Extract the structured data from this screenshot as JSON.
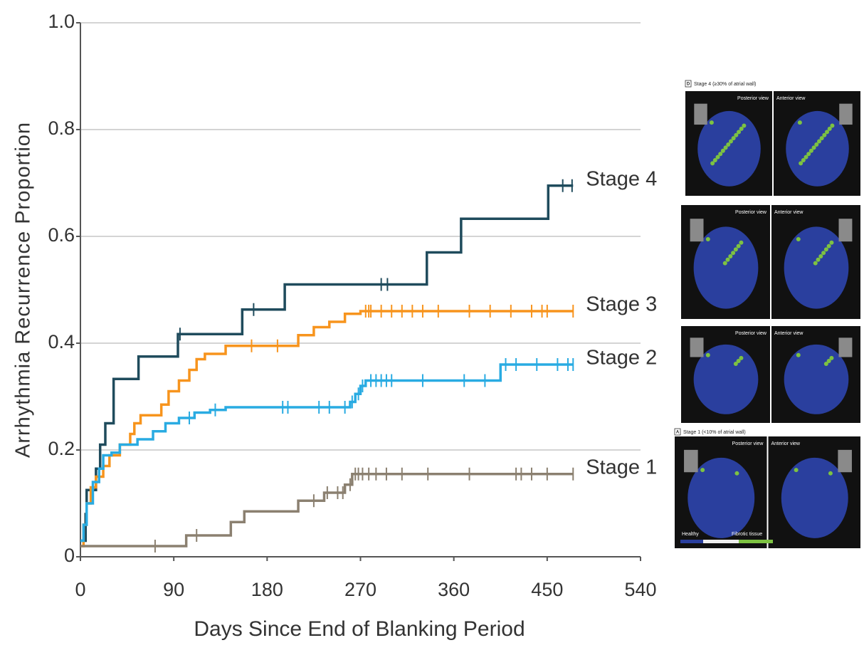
{
  "chart_data": {
    "type": "line",
    "step": true,
    "xlabel": "Days Since End of Blanking Period",
    "ylabel": "Arrhythmia Recurrence Proportion",
    "xlim": [
      0,
      540
    ],
    "xticks": [
      0,
      90,
      180,
      270,
      360,
      450,
      540
    ],
    "ylim": [
      0,
      1
    ],
    "yticks": [
      0,
      0.2,
      0.4,
      0.6,
      0.8,
      {
        "value": 1,
        "label": "1.0"
      }
    ],
    "grid": true,
    "series": [
      {
        "name": "Stage 4",
        "color": "#1f4b5c",
        "x": [
          0,
          5,
          6,
          15,
          19,
          24,
          32,
          56,
          94,
          156,
          197,
          334,
          367,
          451,
          475
        ],
        "values": [
          0.03,
          0.08,
          0.125,
          0.165,
          0.21,
          0.25,
          0.333,
          0.375,
          0.417,
          0.463,
          0.51,
          0.57,
          0.633,
          0.695,
          0.695
        ],
        "censored": [
          96,
          167,
          290,
          296,
          465,
          474
        ]
      },
      {
        "name": "Stage 3",
        "color": "#f7941d",
        "x": [
          0,
          3,
          6,
          10,
          15,
          22,
          28,
          38,
          48,
          52,
          58,
          78,
          85,
          95,
          105,
          112,
          120,
          140,
          210,
          225,
          240,
          255,
          270,
          475
        ],
        "values": [
          0.02,
          0.06,
          0.1,
          0.13,
          0.15,
          0.17,
          0.19,
          0.21,
          0.23,
          0.25,
          0.265,
          0.285,
          0.31,
          0.33,
          0.35,
          0.37,
          0.38,
          0.395,
          0.415,
          0.43,
          0.44,
          0.455,
          0.46,
          0.46
        ],
        "censored": [
          165,
          190,
          275,
          278,
          280,
          290,
          300,
          310,
          320,
          330,
          345,
          375,
          395,
          415,
          435,
          445,
          450,
          475
        ]
      },
      {
        "name": "Stage 2",
        "color": "#29abe2",
        "x": [
          0,
          3,
          6,
          12,
          18,
          22,
          30,
          38,
          55,
          70,
          82,
          95,
          110,
          125,
          140,
          260,
          265,
          270,
          275,
          405,
          475
        ],
        "values": [
          0.03,
          0.06,
          0.1,
          0.14,
          0.165,
          0.19,
          0.195,
          0.21,
          0.22,
          0.235,
          0.25,
          0.26,
          0.27,
          0.275,
          0.28,
          0.29,
          0.305,
          0.32,
          0.33,
          0.36,
          0.36
        ],
        "censored": [
          105,
          130,
          195,
          200,
          230,
          240,
          255,
          262,
          268,
          272,
          280,
          285,
          290,
          295,
          300,
          330,
          370,
          390,
          410,
          420,
          440,
          460,
          470,
          475
        ]
      },
      {
        "name": "Stage 1",
        "color": "#8b8070",
        "x": [
          0,
          102,
          145,
          158,
          210,
          235,
          255,
          262,
          475
        ],
        "values": [
          0.02,
          0.04,
          0.065,
          0.085,
          0.105,
          0.12,
          0.135,
          0.155,
          0.155
        ],
        "censored": [
          72,
          112,
          225,
          238,
          248,
          253,
          260,
          265,
          268,
          272,
          278,
          285,
          295,
          310,
          335,
          375,
          420,
          425,
          435,
          450,
          475
        ]
      }
    ]
  },
  "panels": [
    {
      "letter": "D",
      "caption": "Stage 4 (≥30% of atrial wall)",
      "views": [
        "Posterior view",
        "Anterior view"
      ]
    },
    {
      "views": [
        "Posterior view",
        "Anterior view"
      ]
    },
    {
      "views": [
        "Posterior view",
        "Anterior view"
      ]
    },
    {
      "letter": "A",
      "caption": "Stage 1 (<10% of atrial wall)",
      "views": [
        "Posterior view",
        "Anterior view"
      ],
      "scale": [
        "Healthy",
        "Fibrotic tissue"
      ]
    }
  ]
}
